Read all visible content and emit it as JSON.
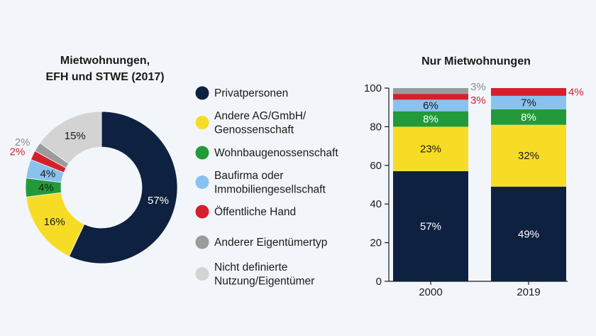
{
  "colors": {
    "Privatpersonen": "#0f2140",
    "Andere AG/GmbH/Genossenschaft": "#f7dc26",
    "Wohnbaugenossenschaft": "#239a3a",
    "Baufirma oder Immobiliengesellschaft": "#89c2ee",
    "Öffentliche Hand": "#d5202c",
    "Anderer Eigentümertyp": "#9b9b9b",
    "Nicht definierte Nutzung/Eigentümer": "#d3d3d3"
  },
  "legend": [
    {
      "key": "Privatpersonen",
      "lines": [
        "Privatpersonen"
      ]
    },
    {
      "key": "Andere AG/GmbH/Genossenschaft",
      "lines": [
        "Andere AG/GmbH/",
        "Genossenschaft"
      ]
    },
    {
      "key": "Wohnbaugenossenschaft",
      "lines": [
        "Wohnbaugenossenschaft"
      ]
    },
    {
      "key": "Baufirma oder Immobiliengesellschaft",
      "lines": [
        "Baufirma oder",
        "Immobiliengesellschaft"
      ]
    },
    {
      "key": "Öffentliche Hand",
      "lines": [
        "Öffentliche Hand"
      ]
    },
    {
      "key": "Anderer Eigentümertyp",
      "lines": [
        "Anderer Eigentümertyp"
      ]
    },
    {
      "key": "Nicht definierte Nutzung/Eigentümer",
      "lines": [
        "Nicht definierte",
        "Nutzung/Eigentümer"
      ]
    }
  ],
  "chart_data": [
    {
      "type": "pie",
      "donut": true,
      "title": [
        "Mietwohnungen,",
        "EFH und STWE (2017)"
      ],
      "slices": [
        {
          "label": "Privatpersonen",
          "value": 57,
          "text": "57%"
        },
        {
          "label": "Andere AG/GmbH/Genossenschaft",
          "value": 16,
          "text": "16%"
        },
        {
          "label": "Wohnbaugenossenschaft",
          "value": 4,
          "text": "4%"
        },
        {
          "label": "Baufirma oder Immobiliengesellschaft",
          "value": 4,
          "text": "4%"
        },
        {
          "label": "Öffentliche Hand",
          "value": 2,
          "text": "2%"
        },
        {
          "label": "Anderer Eigentümertyp",
          "value": 2,
          "text": "2%"
        },
        {
          "label": "Nicht definierte Nutzung/Eigentümer",
          "value": 15,
          "text": "15%"
        }
      ]
    },
    {
      "type": "bar",
      "stacked": true,
      "title": "Nur Mietwohnungen",
      "categories": [
        "2000",
        "2019"
      ],
      "ylim": [
        0,
        100
      ],
      "yticks": [
        "0",
        "20",
        "40",
        "60",
        "80",
        "100"
      ],
      "series": [
        {
          "name": "Privatpersonen",
          "values": [
            57,
            49
          ],
          "labels": [
            "57%",
            "49%"
          ]
        },
        {
          "name": "Andere AG/GmbH/Genossenschaft",
          "values": [
            23,
            32
          ],
          "labels": [
            "23%",
            "32%"
          ]
        },
        {
          "name": "Wohnbaugenossenschaft",
          "values": [
            8,
            8
          ],
          "labels": [
            "8%",
            "8%"
          ]
        },
        {
          "name": "Baufirma oder Immobiliengesellschaft",
          "values": [
            6,
            7
          ],
          "labels": [
            "6%",
            "7%"
          ]
        },
        {
          "name": "Öffentliche Hand",
          "values": [
            3,
            4
          ],
          "labels": [
            "3%",
            "4%"
          ]
        },
        {
          "name": "Anderer Eigentümertyp",
          "values": [
            3,
            0
          ],
          "labels": [
            "3%",
            ""
          ]
        }
      ]
    }
  ]
}
